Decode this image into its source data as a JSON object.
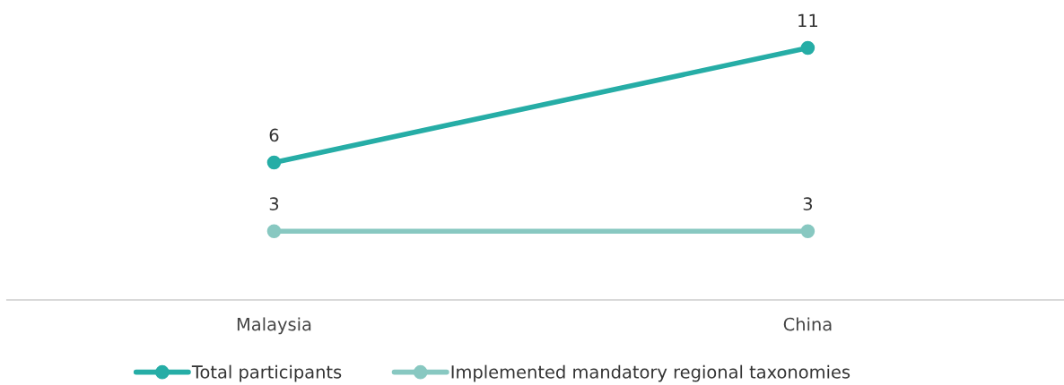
{
  "chart_data": {
    "type": "line",
    "categories": [
      "Malaysia",
      "China"
    ],
    "series": [
      {
        "name": "Total participants",
        "color": "#26ada6",
        "values": [
          6,
          11
        ]
      },
      {
        "name": "Implemented mandatory regional taxonomies",
        "color": "#88c8c1",
        "values": [
          3,
          3
        ]
      }
    ],
    "data_labels": true,
    "legend": "bottom",
    "marker": "circle",
    "line_style": "solid",
    "grid": false,
    "tick_labels": "x"
  }
}
